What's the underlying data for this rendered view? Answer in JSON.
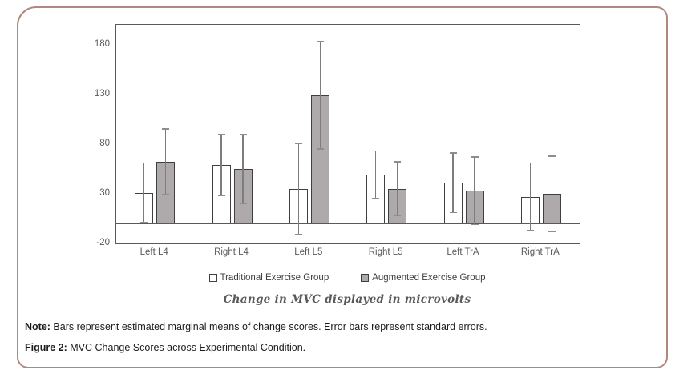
{
  "chart_data": {
    "type": "bar",
    "title": "Change in MVC displayed in microvolts",
    "categories": [
      "Left L4",
      "Right L4",
      "Left L5",
      "Right L5",
      "Left TrA",
      "Right TrA"
    ],
    "series": [
      {
        "name": "Traditional Exercise Group",
        "fill": "#ffffff",
        "values": [
          31,
          59,
          35,
          49,
          41,
          27
        ],
        "errors": [
          30,
          31,
          46,
          24,
          30,
          34
        ]
      },
      {
        "name": "Augmented Exercise Group",
        "fill": "#aeaaab",
        "values": [
          62,
          55,
          129,
          35,
          33,
          30
        ],
        "errors": [
          33,
          35,
          54,
          27,
          34,
          38
        ]
      }
    ],
    "y_ticks": [
      180,
      130,
      80,
      30,
      -20
    ],
    "ylim": [
      -20,
      200
    ],
    "grid": false,
    "legend_position": "bottom",
    "error_bars": "standard errors"
  },
  "colors": {
    "frame_border": "#b08880",
    "plot_border": "#595959",
    "bar_border": "#3f3f3f",
    "error_bar": "#7d7d7d",
    "axis_text": "#595959"
  },
  "note": {
    "label": "Note:",
    "text": " Bars represent estimated marginal means of change scores.  Error bars represent standard errors.",
    "figure_label": "Figure 2:",
    "figure_text": " MVC Change Scores across Experimental Condition."
  }
}
